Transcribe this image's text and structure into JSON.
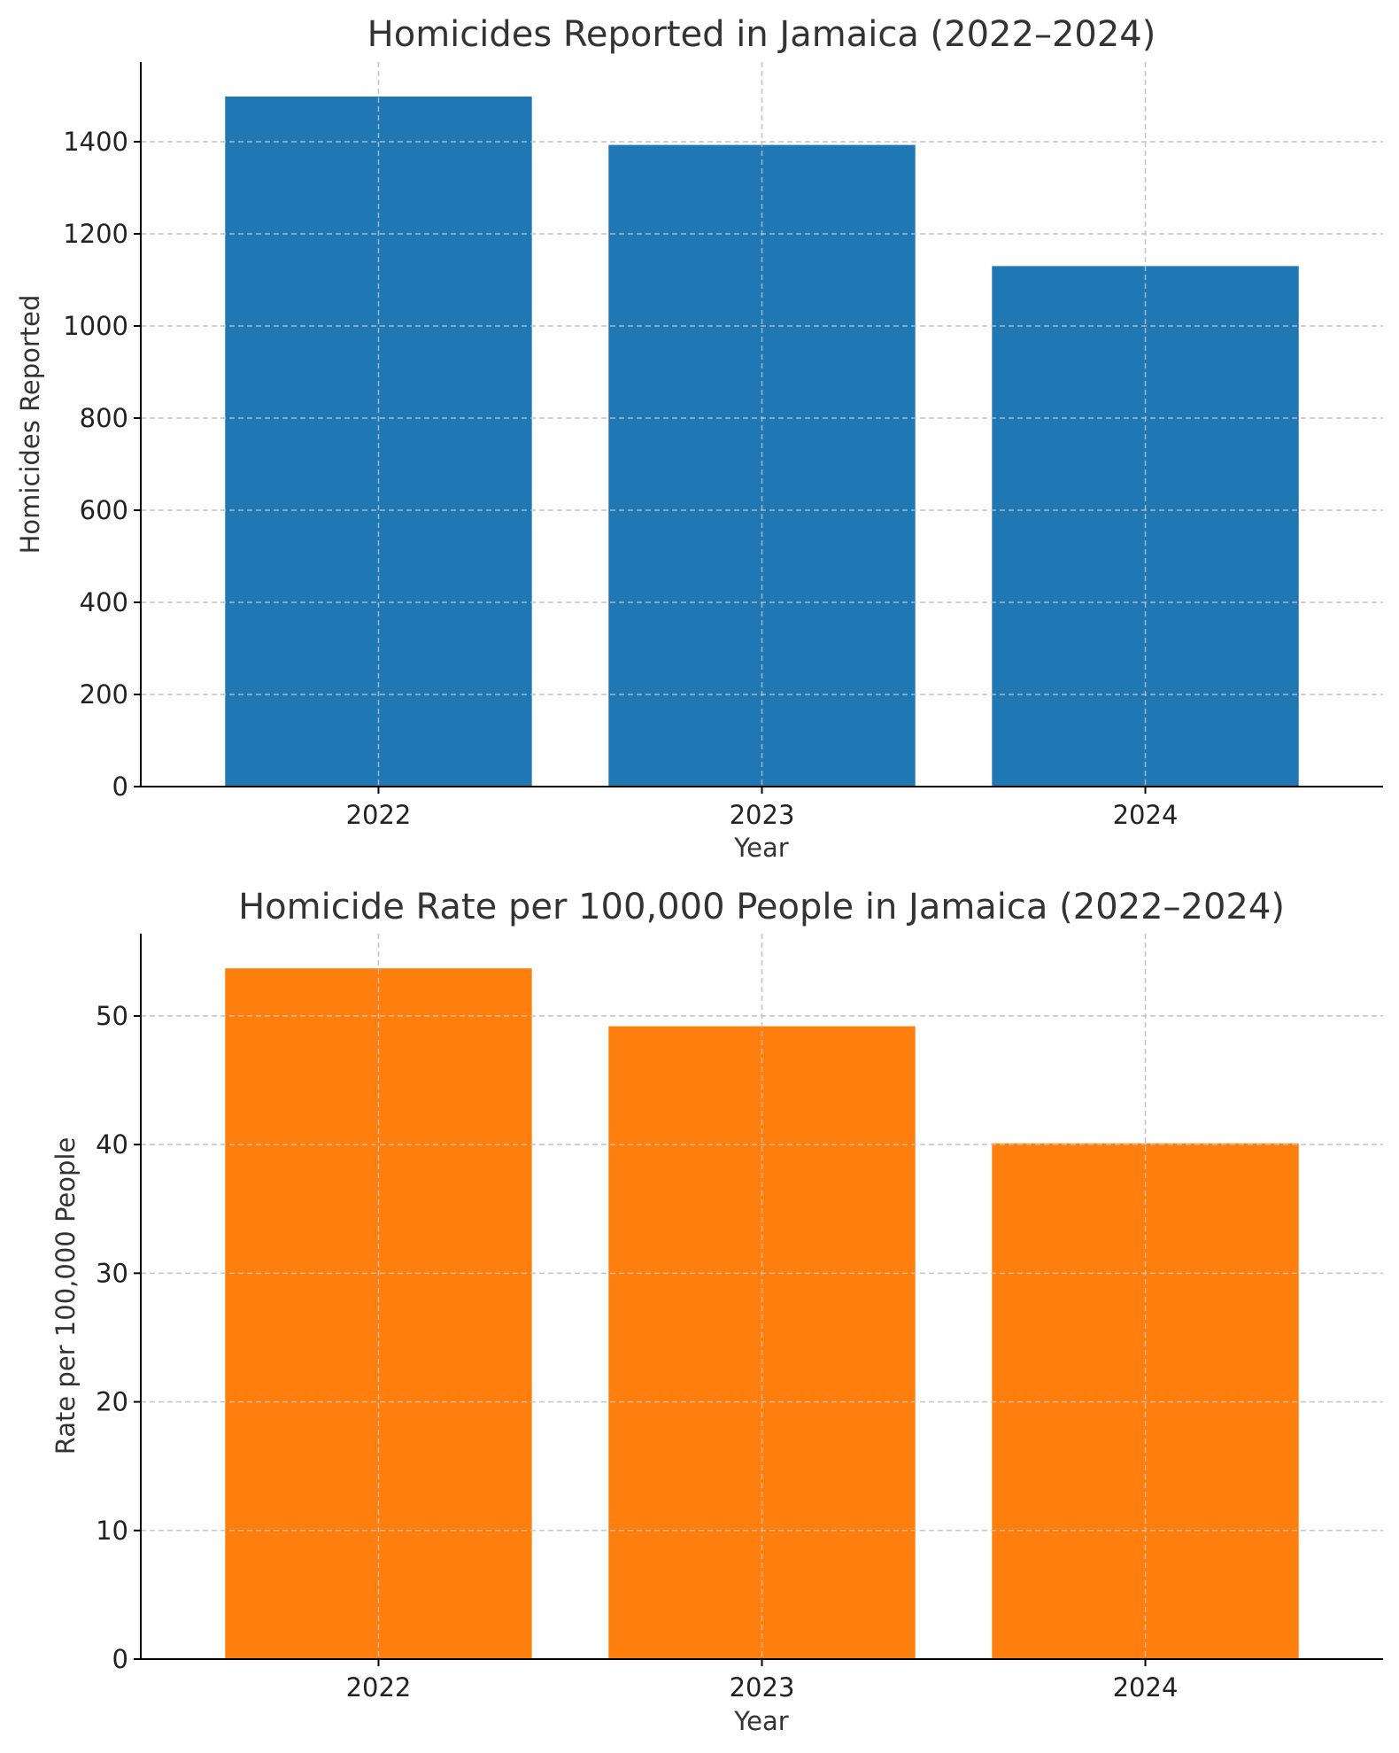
{
  "chart_data": [
    {
      "type": "bar",
      "title": "Homicides Reported in Jamaica (2022–2024)",
      "xlabel": "Year",
      "ylabel": "Homicides Reported",
      "categories": [
        "2022",
        "2023",
        "2024"
      ],
      "values": [
        1498,
        1393,
        1130
      ],
      "ylim": [
        0,
        1573
      ],
      "yticks": [
        0,
        200,
        400,
        600,
        800,
        1000,
        1200,
        1400
      ],
      "grid": true,
      "color": "#1f77b4"
    },
    {
      "type": "bar",
      "title": "Homicide Rate per 100,000 People in Jamaica (2022–2024)",
      "xlabel": "Year",
      "ylabel": "Rate per 100,000 People",
      "categories": [
        "2022",
        "2023",
        "2024"
      ],
      "values": [
        53.7,
        49.2,
        40.1
      ],
      "ylim": [
        0,
        56.4
      ],
      "yticks": [
        0,
        10,
        20,
        30,
        40,
        50
      ],
      "grid": true,
      "color": "#ff7f0e"
    }
  ]
}
